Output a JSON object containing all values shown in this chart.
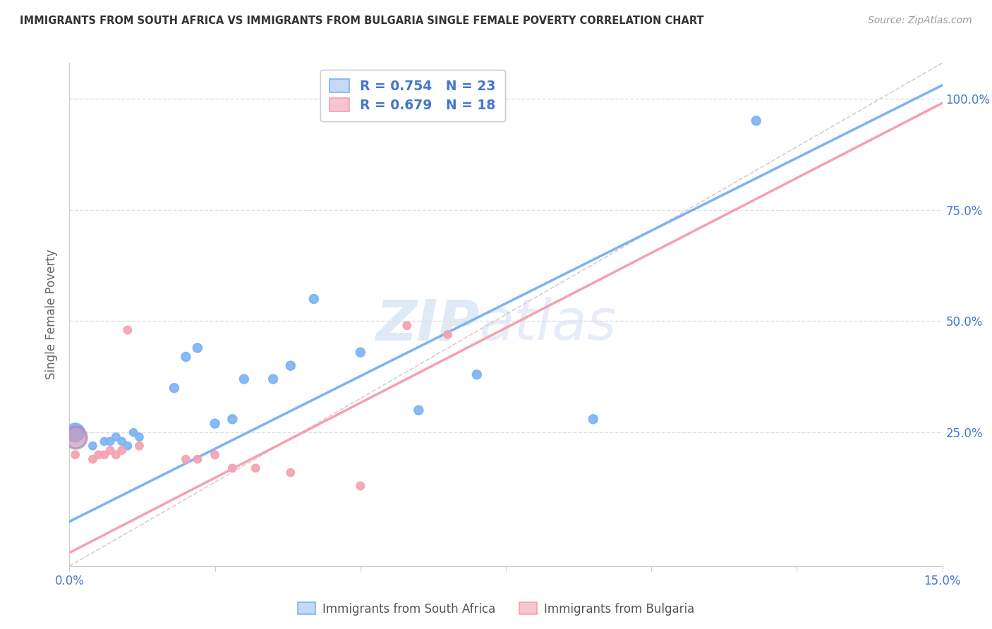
{
  "title": "IMMIGRANTS FROM SOUTH AFRICA VS IMMIGRANTS FROM BULGARIA SINGLE FEMALE POVERTY CORRELATION CHART",
  "source": "Source: ZipAtlas.com",
  "ylabel": "Single Female Poverty",
  "x_min": 0.0,
  "x_max": 0.15,
  "y_min": -0.05,
  "y_max": 1.08,
  "x_ticks": [
    0.0,
    0.025,
    0.05,
    0.075,
    0.1,
    0.125,
    0.15
  ],
  "x_tick_labels": [
    "0.0%",
    "",
    "",
    "",
    "",
    "",
    "15.0%"
  ],
  "y_ticks": [
    0.25,
    0.5,
    0.75,
    1.0
  ],
  "y_tick_labels": [
    "25.0%",
    "50.0%",
    "75.0%",
    "100.0%"
  ],
  "blue_color": "#7ab3f5",
  "pink_color": "#f5a0b0",
  "diagonal_color": "#e0c8d0",
  "legend_r_blue": "R = 0.754",
  "legend_n_blue": "N = 23",
  "legend_r_pink": "R = 0.679",
  "legend_n_pink": "N = 18",
  "legend_label_blue": "Immigrants from South Africa",
  "legend_label_pink": "Immigrants from Bulgaria",
  "watermark_zip": "ZIP",
  "watermark_atlas": "atlas",
  "south_africa_x": [
    0.001,
    0.004,
    0.006,
    0.007,
    0.008,
    0.009,
    0.01,
    0.011,
    0.012,
    0.018,
    0.02,
    0.022,
    0.025,
    0.028,
    0.03,
    0.035,
    0.038,
    0.042,
    0.05,
    0.06,
    0.07,
    0.09,
    0.118
  ],
  "south_africa_y": [
    0.25,
    0.22,
    0.23,
    0.23,
    0.24,
    0.23,
    0.22,
    0.25,
    0.24,
    0.35,
    0.42,
    0.44,
    0.27,
    0.28,
    0.37,
    0.37,
    0.4,
    0.55,
    0.43,
    0.3,
    0.38,
    0.28,
    0.95
  ],
  "south_africa_sizes": [
    350,
    60,
    60,
    60,
    60,
    60,
    60,
    60,
    60,
    80,
    80,
    80,
    80,
    80,
    80,
    80,
    80,
    80,
    80,
    80,
    80,
    80,
    80
  ],
  "bulgaria_x": [
    0.001,
    0.004,
    0.005,
    0.006,
    0.007,
    0.008,
    0.009,
    0.01,
    0.012,
    0.02,
    0.022,
    0.025,
    0.028,
    0.032,
    0.038,
    0.05,
    0.058,
    0.065
  ],
  "bulgaria_y": [
    0.2,
    0.19,
    0.2,
    0.2,
    0.21,
    0.2,
    0.21,
    0.48,
    0.22,
    0.19,
    0.19,
    0.2,
    0.17,
    0.17,
    0.16,
    0.13,
    0.49,
    0.47
  ],
  "bulgaria_sizes": [
    60,
    60,
    60,
    60,
    60,
    60,
    60,
    60,
    60,
    60,
    60,
    60,
    60,
    60,
    60,
    60,
    60,
    60
  ],
  "blue_line_x": [
    0.0,
    0.15
  ],
  "blue_line_y": [
    0.05,
    1.03
  ],
  "pink_line_x": [
    0.0,
    0.15
  ],
  "pink_line_y": [
    -0.02,
    0.99
  ],
  "diag_line_x": [
    0.0,
    0.15
  ],
  "diag_line_y": [
    -0.05,
    1.08
  ],
  "blue_text_color": "#4477cc",
  "axis_text_color": "#4477cc",
  "title_color": "#333333",
  "source_color": "#999999",
  "grid_color": "#e0e0e8",
  "spine_color": "#cccccc"
}
